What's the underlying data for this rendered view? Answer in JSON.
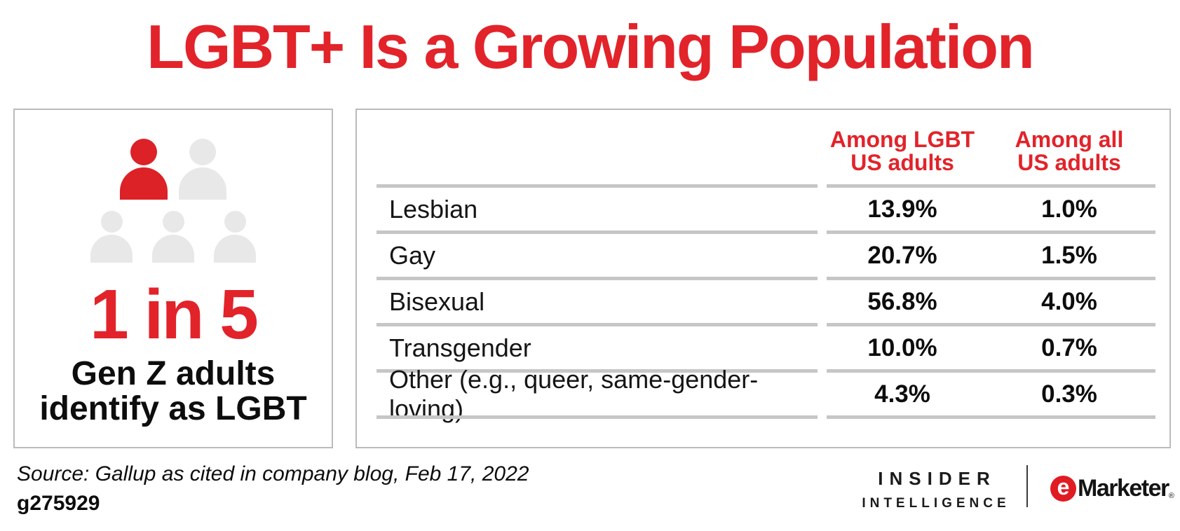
{
  "title": "LGBT+ Is a Growing Population",
  "colors": {
    "red": "#E2232A",
    "icon_red": "#DC2127",
    "icon_gray": "#E8E8E8",
    "grid_line": "#C6C6C6",
    "box_border": "#BBBBBB",
    "emarketer_red": "#E11B22"
  },
  "callout": {
    "stat": "1 in 5",
    "line1": "Gen Z adults",
    "line2": "identify as LGBT",
    "icons_highlighted": 1,
    "icons_total": 5
  },
  "table": {
    "col1": {
      "line1": "Among LGBT",
      "line2": "US adults"
    },
    "col2": {
      "line1": "Among all",
      "line2": "US adults"
    },
    "rows": [
      {
        "label": "Lesbian",
        "lgbt": "13.9%",
        "all": "1.0%"
      },
      {
        "label": "Gay",
        "lgbt": "20.7%",
        "all": "1.5%"
      },
      {
        "label": "Bisexual",
        "lgbt": "56.8%",
        "all": "4.0%"
      },
      {
        "label": "Transgender",
        "lgbt": "10.0%",
        "all": "0.7%"
      },
      {
        "label": "Other (e.g., queer, same-gender-loving)",
        "lgbt": "4.3%",
        "all": "0.3%"
      }
    ]
  },
  "chart_data": {
    "type": "table",
    "title": "LGBT+ Is a Growing Population",
    "columns": [
      "Among LGBT US adults",
      "Among all US adults"
    ],
    "categories": [
      "Lesbian",
      "Gay",
      "Bisexual",
      "Transgender",
      "Other (e.g., queer, same-gender-loving)"
    ],
    "series": [
      {
        "name": "Among LGBT US adults",
        "values": [
          13.9,
          20.7,
          56.8,
          10.0,
          4.3
        ]
      },
      {
        "name": "Among all US adults",
        "values": [
          1.0,
          1.5,
          4.0,
          0.7,
          0.3
        ]
      }
    ],
    "callout": {
      "stat": "1 in 5",
      "label": "Gen Z adults identify as LGBT"
    }
  },
  "footer": {
    "source": "Source: Gallup as cited in company blog, Feb 17, 2022",
    "id": "g275929",
    "insider_line1": "INSIDER",
    "insider_line2": "INTELLIGENCE",
    "emarketer_e": "e",
    "emarketer_text": "Marketer",
    "emarketer_reg": "®"
  }
}
